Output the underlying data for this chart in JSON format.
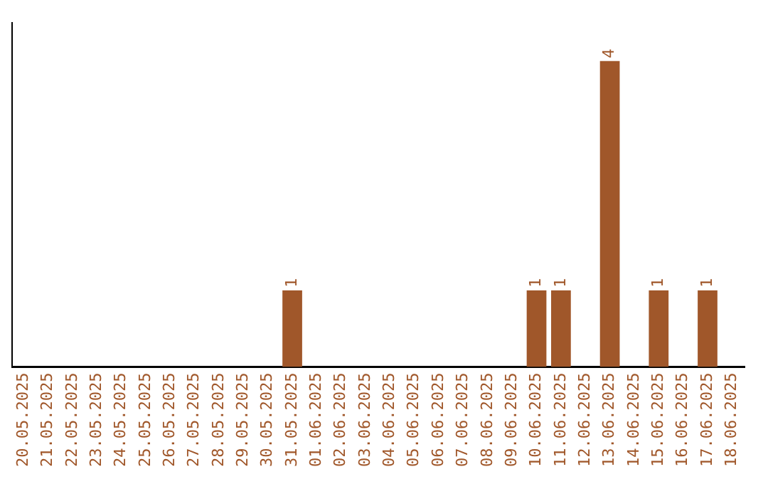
{
  "chart_data": {
    "type": "bar",
    "categories": [
      "20.05.2025",
      "21.05.2025",
      "22.05.2025",
      "23.05.2025",
      "24.05.2025",
      "25.05.2025",
      "26.05.2025",
      "27.05.2025",
      "28.05.2025",
      "29.05.2025",
      "30.05.2025",
      "31.05.2025",
      "01.06.2025",
      "02.06.2025",
      "03.06.2025",
      "04.06.2025",
      "05.06.2025",
      "06.06.2025",
      "07.06.2025",
      "08.06.2025",
      "09.06.2025",
      "10.06.2025",
      "11.06.2025",
      "12.06.2025",
      "13.06.2025",
      "14.06.2025",
      "15.06.2025",
      "16.06.2025",
      "17.06.2025",
      "18.06.2025"
    ],
    "values": [
      0,
      0,
      0,
      0,
      0,
      0,
      0,
      0,
      0,
      0,
      0,
      1,
      0,
      0,
      0,
      0,
      0,
      0,
      0,
      0,
      0,
      1,
      1,
      0,
      4,
      0,
      1,
      0,
      1,
      0
    ],
    "value_labels": [
      null,
      null,
      null,
      null,
      null,
      null,
      null,
      null,
      null,
      null,
      null,
      "1",
      null,
      null,
      null,
      null,
      null,
      null,
      null,
      null,
      null,
      "1",
      "1",
      null,
      "4",
      null,
      "1",
      null,
      "1",
      null
    ],
    "color": "#a0572a",
    "grid": false,
    "legend": false,
    "tick_labels": "x"
  }
}
